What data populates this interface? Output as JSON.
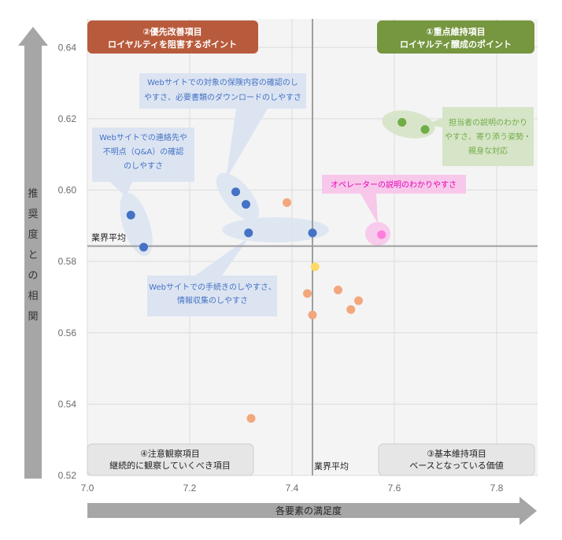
{
  "chart_data": {
    "type": "scatter",
    "title": "",
    "xlabel": "各要素の満足度",
    "ylabel": "推奨度との相関",
    "xlim": [
      7.0,
      7.88
    ],
    "ylim": [
      0.52,
      0.648
    ],
    "xticks": [
      "7.0",
      "7.2",
      "7.4",
      "7.6",
      "7.8"
    ],
    "yticks": [
      "0.52",
      "0.54",
      "0.56",
      "0.58",
      "0.60",
      "0.62",
      "0.64"
    ],
    "grid": true,
    "reference_lines": {
      "x_avg": 7.44,
      "y_avg": 0.5843,
      "x_label": "業界平均",
      "y_label": "業界平均"
    },
    "quadrants": [
      {
        "id": "q1",
        "line1": "①重点維持項目",
        "line2": "ロイヤルティ醸成のポイント",
        "color": "#76963f"
      },
      {
        "id": "q2",
        "line1": "②優先改善項目",
        "line2": "ロイヤルティを阻害するポイント",
        "color": "#b85b3c"
      },
      {
        "id": "q3",
        "line1": "③基本維持項目",
        "line2": "ベースとなっている価値",
        "color": "#e6e6e6"
      },
      {
        "id": "q4",
        "line1": "④注意観察項目",
        "line2": "継続的に観察していくべき項目",
        "color": "#e6e6e6"
      }
    ],
    "series": [
      {
        "color": "#4472c4",
        "points": [
          {
            "x": 7.085,
            "y": 0.593
          },
          {
            "x": 7.11,
            "y": 0.584
          },
          {
            "x": 7.29,
            "y": 0.5995
          },
          {
            "x": 7.31,
            "y": 0.596
          },
          {
            "x": 7.315,
            "y": 0.588
          },
          {
            "x": 7.44,
            "y": 0.588
          }
        ]
      },
      {
        "color": "#70ad47",
        "points": [
          {
            "x": 7.615,
            "y": 0.619
          },
          {
            "x": 7.66,
            "y": 0.617
          }
        ]
      },
      {
        "color": "#ff7ddc",
        "points": [
          {
            "x": 7.575,
            "y": 0.5875
          }
        ]
      },
      {
        "color": "#f4a67c",
        "points": [
          {
            "x": 7.39,
            "y": 0.5965
          },
          {
            "x": 7.43,
            "y": 0.571
          },
          {
            "x": 7.44,
            "y": 0.565
          },
          {
            "x": 7.49,
            "y": 0.572
          },
          {
            "x": 7.515,
            "y": 0.5665
          },
          {
            "x": 7.53,
            "y": 0.569
          },
          {
            "x": 7.32,
            "y": 0.536
          }
        ]
      },
      {
        "color": "#ffd966",
        "points": [
          {
            "x": 7.445,
            "y": 0.5785
          }
        ]
      }
    ],
    "callouts": [
      {
        "id": "web-contact",
        "lines": [
          "Webサイトでの連絡先や",
          "不明点（Q&A）の確認",
          "のしやすさ"
        ],
        "text_color": "#4472c4"
      },
      {
        "id": "web-docs",
        "lines": [
          "Webサイトでの対象の保険内容の確認のし",
          "やすさ、必要書類のダウンロードのしやすさ"
        ],
        "text_color": "#4472c4"
      },
      {
        "id": "web-proc",
        "lines": [
          "Webサイトでの手続きのしやすさ、",
          "情報収集のしやすさ"
        ],
        "text_color": "#4472c4"
      },
      {
        "id": "staff",
        "lines": [
          "担当者の説明のわかり",
          "やすさ、寄り添う姿勢・",
          "親身な対応"
        ],
        "text_color": "#70ad47"
      },
      {
        "id": "operator",
        "lines": [
          "オペレーターの説明のわかりやすさ"
        ],
        "text_color": "#e600b8"
      }
    ]
  }
}
